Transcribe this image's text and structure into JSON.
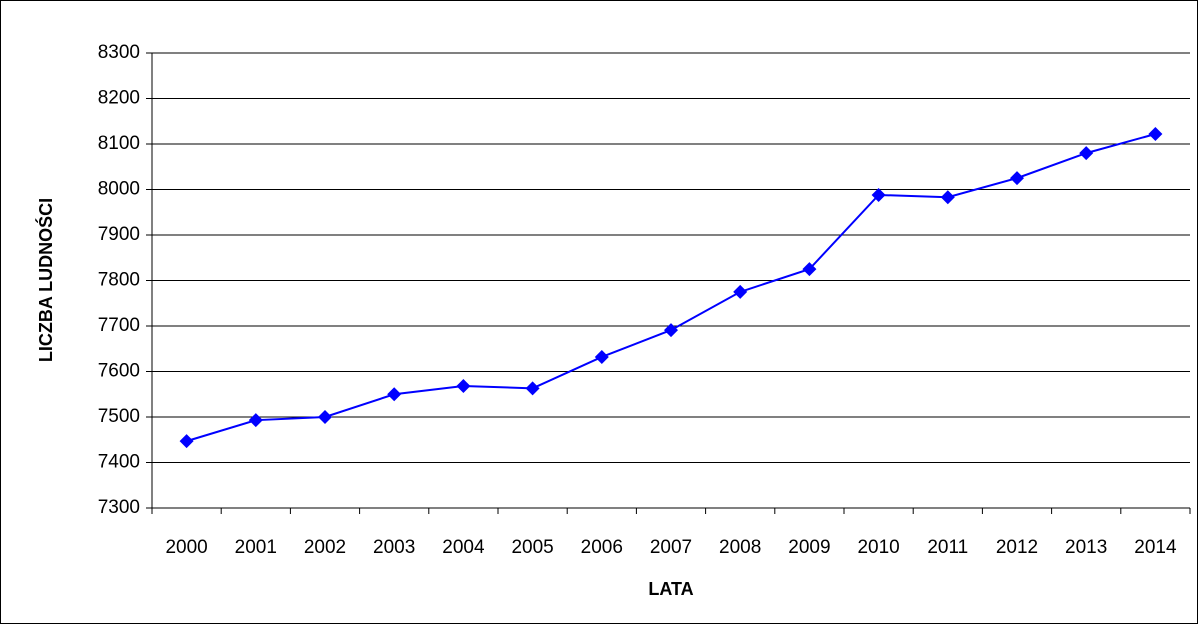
{
  "chart_data": {
    "type": "line",
    "x_label": "LATA",
    "y_label": "LICZBA LUDNOŚCI",
    "categories": [
      "2000",
      "2001",
      "2002",
      "2003",
      "2004",
      "2005",
      "2006",
      "2007",
      "2008",
      "2009",
      "2010",
      "2011",
      "2012",
      "2013",
      "2014"
    ],
    "values": [
      7447,
      7493,
      7500,
      7550,
      7568,
      7563,
      7632,
      7691,
      7775,
      7825,
      7988,
      7983,
      8025,
      8080,
      8122
    ],
    "color": "#0000ff",
    "ylim": [
      7300,
      8300
    ],
    "yticks": [
      7300,
      7400,
      7500,
      7600,
      7700,
      7800,
      7900,
      8000,
      8100,
      8200,
      8300
    ],
    "grid": true
  }
}
